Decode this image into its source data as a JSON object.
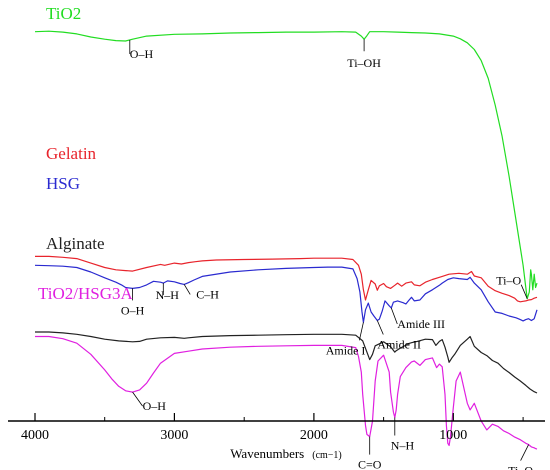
{
  "chart_data": {
    "type": "line",
    "title": "",
    "xlabel": "Wavenumbers",
    "xlabel_unit": "(cm−1)",
    "ylabel": "",
    "xlim": [
      4000,
      400
    ],
    "x_reversed": true,
    "x_ticks": [
      4000,
      3000,
      2000,
      1000
    ],
    "x_tick_labels": [
      "4000",
      "3000",
      "2000",
      "1000"
    ],
    "y_axis_shown": false,
    "grid": false,
    "series": [
      {
        "name": "TiO2",
        "color": "#22dd22",
        "x": [
          4000,
          3900,
          3800,
          3700,
          3600,
          3500,
          3420,
          3350,
          3300,
          3200,
          3000,
          2800,
          2600,
          2400,
          2200,
          2000,
          1800,
          1700,
          1660,
          1640,
          1620,
          1600,
          1500,
          1400,
          1300,
          1200,
          1100,
          1000,
          950,
          900,
          850,
          800,
          750,
          700,
          650,
          600,
          560,
          530,
          500,
          480,
          470,
          455,
          445,
          440,
          430,
          420,
          410,
          400
        ],
        "y": [
          98.5,
          98.6,
          98.4,
          98.0,
          97.3,
          96.8,
          96.5,
          96.4,
          96.8,
          97.5,
          97.9,
          98.0,
          98.2,
          98.3,
          98.4,
          98.4,
          98.5,
          98.4,
          97.5,
          96.8,
          97.6,
          98.5,
          98.5,
          98.4,
          98.3,
          98.2,
          98.0,
          97.5,
          96.9,
          96.0,
          94.5,
          92.0,
          88.0,
          82.0,
          75.0,
          66.0,
          58.0,
          52.0,
          46.0,
          41.0,
          38.5,
          40.0,
          45.0,
          44.0,
          40.5,
          44.0,
          41.0,
          42.0
        ]
      },
      {
        "name": "Gelatin",
        "color": "#e8242c",
        "x": [
          4000,
          3900,
          3800,
          3700,
          3600,
          3500,
          3420,
          3350,
          3300,
          3200,
          3100,
          3070,
          3000,
          2950,
          2900,
          2850,
          2800,
          2700,
          2500,
          2300,
          2100,
          2000,
          1900,
          1800,
          1720,
          1680,
          1660,
          1645,
          1630,
          1610,
          1590,
          1560,
          1545,
          1530,
          1500,
          1480,
          1450,
          1420,
          1400,
          1370,
          1340,
          1300,
          1280,
          1240,
          1200,
          1150,
          1100,
          1080,
          1050,
          1030,
          1000,
          960,
          900,
          870,
          850,
          800,
          750,
          700,
          650,
          600,
          560,
          540,
          520,
          500,
          480,
          460,
          440,
          420,
          400
        ],
        "y": [
          48.0,
          48.0,
          47.8,
          47.5,
          46.5,
          45.5,
          45.0,
          44.8,
          44.7,
          45.5,
          46.2,
          46.0,
          46.5,
          46.3,
          46.6,
          46.8,
          47.0,
          47.2,
          47.3,
          47.4,
          47.5,
          47.6,
          47.6,
          47.6,
          47.3,
          46.0,
          44.0,
          40.5,
          38.2,
          40.5,
          42.6,
          41.8,
          40.4,
          41.4,
          41.9,
          41.2,
          40.8,
          41.5,
          42.0,
          41.3,
          42.0,
          42.3,
          41.6,
          41.4,
          42.2,
          42.8,
          43.3,
          43.5,
          43.8,
          44.0,
          44.1,
          44.2,
          44.0,
          44.6,
          43.6,
          43.2,
          41.3,
          40.3,
          39.7,
          39.2,
          38.6,
          38.0,
          37.8,
          37.9,
          38.0,
          38.2,
          38.3,
          38.6,
          38.8
        ]
      },
      {
        "name": "HSG",
        "color": "#2a2ad0",
        "x": [
          4000,
          3900,
          3800,
          3700,
          3600,
          3500,
          3420,
          3380,
          3350,
          3300,
          3250,
          3200,
          3150,
          3100,
          3080,
          3050,
          3000,
          2960,
          2930,
          2900,
          2860,
          2800,
          2600,
          2400,
          2200,
          2000,
          1900,
          1800,
          1720,
          1690,
          1670,
          1655,
          1645,
          1630,
          1610,
          1590,
          1570,
          1545,
          1530,
          1510,
          1490,
          1460,
          1445,
          1430,
          1400,
          1360,
          1340,
          1320,
          1300,
          1280,
          1240,
          1200,
          1150,
          1100,
          1080,
          1040,
          1000,
          960,
          900,
          880,
          850,
          800,
          750,
          700,
          650,
          600,
          550,
          520,
          500,
          480,
          460,
          440,
          420,
          400
        ],
        "y": [
          46.0,
          45.9,
          45.8,
          45.5,
          44.5,
          43.2,
          42.2,
          41.6,
          41.0,
          40.8,
          41.0,
          41.6,
          42.4,
          42.2,
          42.0,
          42.5,
          42.3,
          41.9,
          41.7,
          42.1,
          42.7,
          43.5,
          44.5,
          45.0,
          45.3,
          45.5,
          45.6,
          45.6,
          45.2,
          43.0,
          40.0,
          35.5,
          33.2,
          36.0,
          37.5,
          35.5,
          34.6,
          33.6,
          33.9,
          35.7,
          38.0,
          36.9,
          36.4,
          37.7,
          38.0,
          37.6,
          37.3,
          38.1,
          38.8,
          38.0,
          38.2,
          39.6,
          40.5,
          41.5,
          42.0,
          42.8,
          43.2,
          43.0,
          42.8,
          43.3,
          42.0,
          40.5,
          37.8,
          35.5,
          35.2,
          34.6,
          34.2,
          33.8,
          33.5,
          33.8,
          34.0,
          33.6,
          34.0,
          36.0
        ]
      },
      {
        "name": "Alginate",
        "color": "#222222",
        "x": [
          4000,
          3900,
          3800,
          3700,
          3600,
          3500,
          3400,
          3300,
          3250,
          3200,
          3100,
          3000,
          2930,
          2900,
          2800,
          2600,
          2400,
          2200,
          2000,
          1900,
          1800,
          1700,
          1650,
          1620,
          1600,
          1580,
          1560,
          1500,
          1450,
          1420,
          1410,
          1380,
          1320,
          1300,
          1260,
          1200,
          1150,
          1125,
          1100,
          1080,
          1060,
          1040,
          1030,
          1010,
          990,
          950,
          900,
          880,
          850,
          800,
          760,
          720,
          680,
          640,
          600,
          560,
          520,
          480,
          450,
          420,
          400
        ],
        "y": [
          31.0,
          31.0,
          30.8,
          30.5,
          30.0,
          29.4,
          29.0,
          28.8,
          28.9,
          29.4,
          29.7,
          29.8,
          29.6,
          29.7,
          30.0,
          30.2,
          30.3,
          30.4,
          30.5,
          30.5,
          30.5,
          30.3,
          29.0,
          26.5,
          24.8,
          26.0,
          27.9,
          28.8,
          27.7,
          26.5,
          26.8,
          27.4,
          28.4,
          28.6,
          28.9,
          29.4,
          29.3,
          28.0,
          28.9,
          29.3,
          27.6,
          25.4,
          24.2,
          25.2,
          26.0,
          28.0,
          29.4,
          30.0,
          27.8,
          26.4,
          25.7,
          24.6,
          24.0,
          22.8,
          21.9,
          20.9,
          20.0,
          19.0,
          18.2,
          17.6,
          17.3
        ]
      },
      {
        "name": "TiO2/HSG3A",
        "color": "#e020e0",
        "x": [
          4000,
          3900,
          3800,
          3700,
          3600,
          3500,
          3450,
          3400,
          3350,
          3300,
          3250,
          3200,
          3150,
          3100,
          3000,
          2900,
          2800,
          2600,
          2400,
          2200,
          2000,
          1900,
          1800,
          1700,
          1680,
          1660,
          1650,
          1630,
          1620,
          1600,
          1580,
          1560,
          1540,
          1500,
          1460,
          1450,
          1430,
          1420,
          1410,
          1400,
          1380,
          1340,
          1300,
          1280,
          1240,
          1200,
          1150,
          1120,
          1100,
          1080,
          1060,
          1050,
          1040,
          1030,
          1020,
          1000,
          980,
          950,
          900,
          880,
          850,
          800,
          760,
          720,
          680,
          640,
          600,
          560,
          520,
          480,
          460,
          440,
          420,
          410,
          400
        ],
        "y": [
          30.0,
          30.0,
          29.5,
          28.5,
          26.0,
          22.5,
          20.5,
          18.8,
          17.8,
          17.5,
          18.0,
          19.5,
          21.8,
          24.0,
          26.2,
          26.7,
          27.2,
          27.6,
          27.8,
          27.9,
          28.0,
          28.0,
          28.0,
          27.5,
          25.5,
          22.0,
          17.0,
          10.0,
          8.0,
          7.5,
          11.0,
          20.0,
          24.5,
          25.8,
          22.0,
          17.5,
          13.0,
          11.8,
          13.5,
          17.0,
          21.0,
          23.0,
          24.3,
          24.5,
          23.5,
          24.8,
          25.2,
          23.0,
          23.8,
          23.2,
          17.0,
          10.0,
          6.0,
          5.5,
          7.5,
          14.0,
          20.0,
          22.0,
          15.0,
          13.5,
          15.0,
          11.0,
          9.0,
          10.3,
          9.8,
          8.8,
          8.2,
          7.4,
          6.8,
          6.0,
          5.7,
          5.2,
          5.0,
          4.8,
          4.7
        ]
      }
    ],
    "annotations": [
      {
        "text": "O–H",
        "x": 3320,
        "series": "TiO2"
      },
      {
        "text": "Ti–OH",
        "x": 1640,
        "series": "TiO2"
      },
      {
        "text": "Ti–O",
        "x": 470,
        "series": "TiO2"
      },
      {
        "text": "O–H",
        "x": 3300,
        "series": "HSG"
      },
      {
        "text": "N–H",
        "x": 3080,
        "series": "HSG"
      },
      {
        "text": "C–H",
        "x": 2930,
        "series": "HSG"
      },
      {
        "text": "Amide I",
        "x": 1645,
        "series": "HSG"
      },
      {
        "text": "Amide II",
        "x": 1545,
        "series": "HSG"
      },
      {
        "text": "Amide III",
        "x": 1445,
        "series": "HSG"
      },
      {
        "text": "O–H",
        "x": 3300,
        "series": "TiO2/HSG3A"
      },
      {
        "text": "C=O",
        "x": 1600,
        "series": "TiO2/HSG3A"
      },
      {
        "text": "N–H",
        "x": 1420,
        "series": "TiO2/HSG3A"
      },
      {
        "text": "Ti–O",
        "x": 460,
        "series": "TiO2/HSG3A"
      }
    ]
  }
}
